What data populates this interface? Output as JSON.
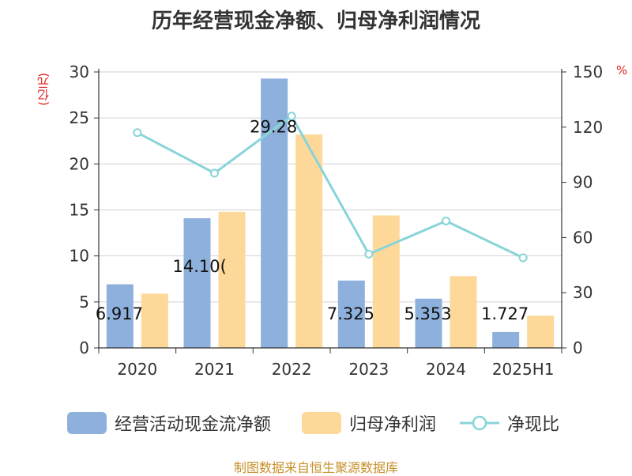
{
  "title": "历年经营现金净额、归母净利润情况",
  "unit_left": "(亿元)",
  "unit_right": "%",
  "legend": [
    {
      "label": "经营活动现金流净额",
      "color": "#8eb0dc",
      "kind": "bar"
    },
    {
      "label": "归母净利润",
      "color": "#fdd899",
      "kind": "bar"
    },
    {
      "label": "净现比",
      "color": "#88d4d8",
      "kind": "line"
    }
  ],
  "footer": "制图数据来自恒生聚源数据库",
  "chart_data": {
    "type": "bar",
    "categories": [
      "2020",
      "2021",
      "2022",
      "2023",
      "2024",
      "2025H1"
    ],
    "series": [
      {
        "name": "经营活动现金流净额",
        "axis": "left",
        "color": "#8eb0dc",
        "values": [
          6.917,
          14.1,
          29.28,
          7.325,
          5.353,
          1.727
        ],
        "labels": [
          "6.917",
          "14.10(",
          "29.28",
          "7.325",
          "5.353",
          "1.727"
        ]
      },
      {
        "name": "归母净利润",
        "axis": "left",
        "color": "#fdd899",
        "values": [
          5.9,
          14.8,
          23.2,
          14.4,
          7.8,
          3.5
        ]
      },
      {
        "name": "净现比",
        "axis": "right",
        "type": "line",
        "color": "#88d4d8",
        "values": [
          117,
          95,
          126,
          51,
          69,
          49
        ]
      }
    ],
    "y_left": {
      "min": 0,
      "max": 30,
      "ticks": [
        0,
        5,
        10,
        15,
        20,
        25,
        30
      ]
    },
    "y_right": {
      "min": 0,
      "max": 150,
      "ticks": [
        0,
        30,
        60,
        90,
        120,
        150
      ]
    },
    "grid": true
  }
}
